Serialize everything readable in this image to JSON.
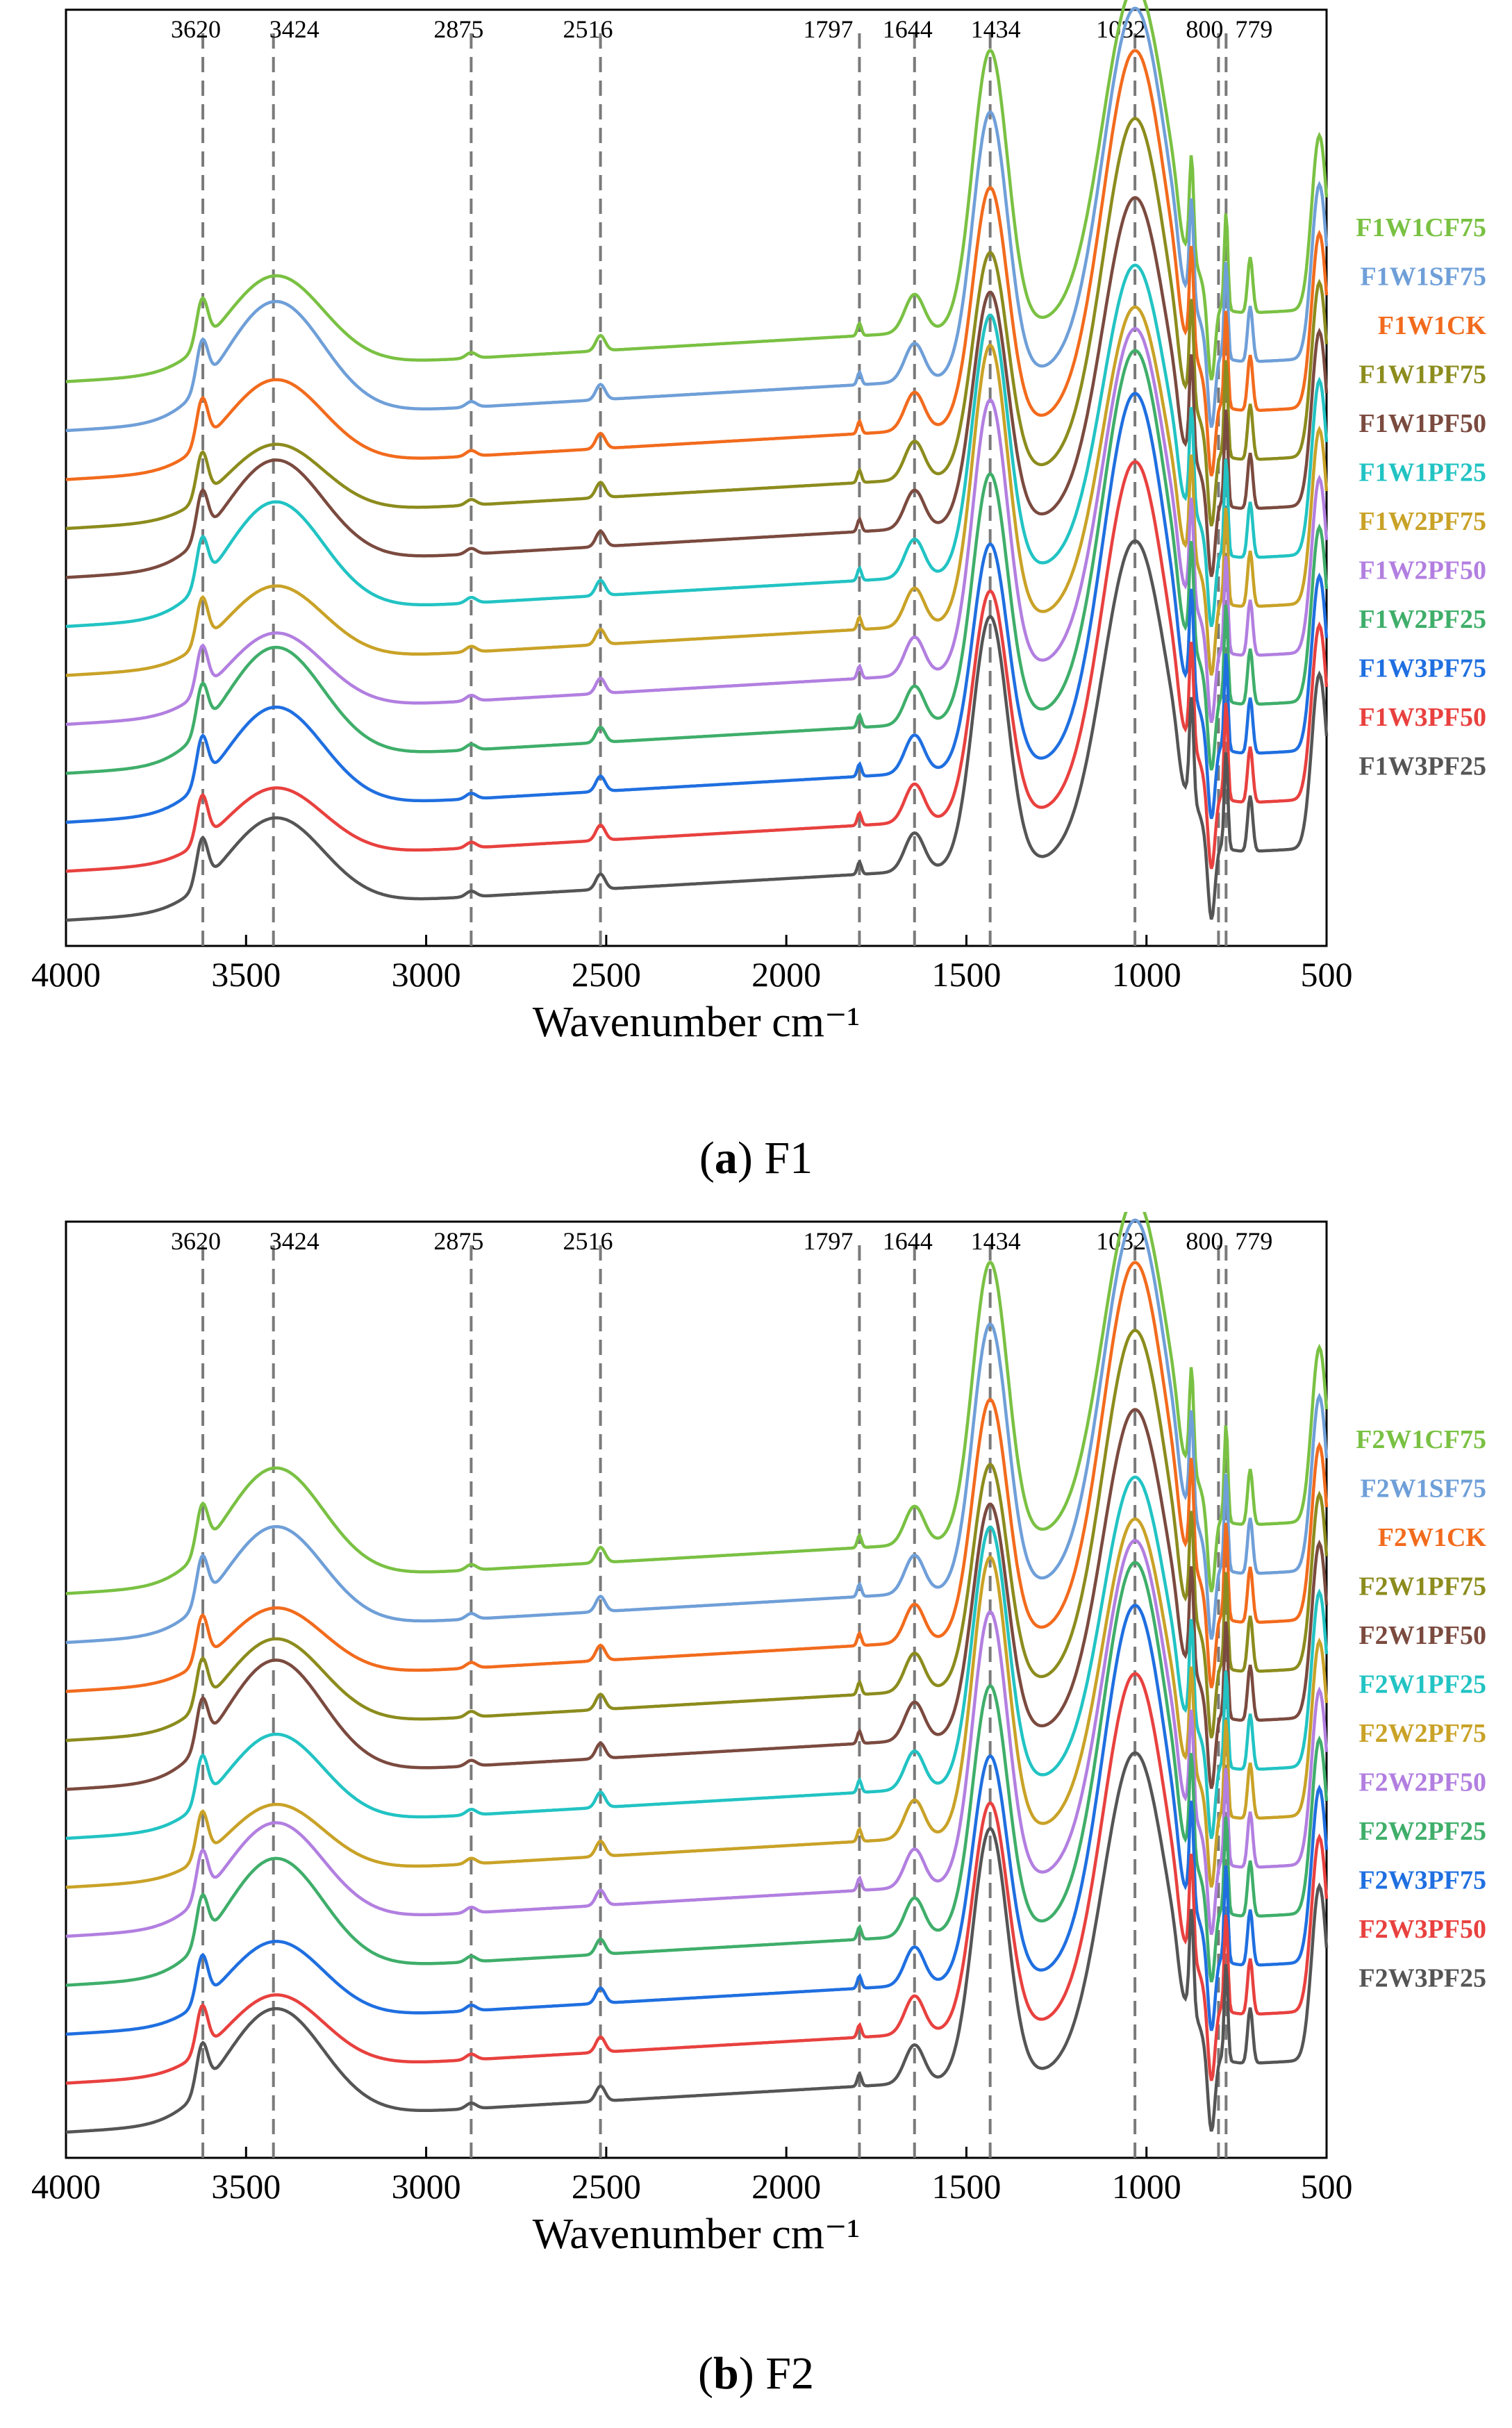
{
  "chart_data": [
    {
      "type": "line",
      "panel": "a",
      "caption_letter": "a",
      "caption_text": "F1",
      "xlabel": "Wavenumber cm⁻¹",
      "ylabel": "",
      "xlim": [
        4000,
        500
      ],
      "x_ticks": [
        "4000",
        "3500",
        "3000",
        "2500",
        "2000",
        "1500",
        "1000",
        "500"
      ],
      "peaks": [
        {
          "wavenumber": 3620,
          "label": "3620"
        },
        {
          "wavenumber": 3424,
          "label": "3424"
        },
        {
          "wavenumber": 2875,
          "label": "2875"
        },
        {
          "wavenumber": 2516,
          "label": "2516"
        },
        {
          "wavenumber": 1797,
          "label": "1797"
        },
        {
          "wavenumber": 1644,
          "label": "1644"
        },
        {
          "wavenumber": 1434,
          "label": "1434"
        },
        {
          "wavenumber": 1032,
          "label": "1032"
        },
        {
          "wavenumber": 800,
          "label": "800"
        },
        {
          "wavenumber": 779,
          "label": "779"
        }
      ],
      "legend_position": "right",
      "series": [
        {
          "name": "F1W1CF75",
          "color": "#7ac143"
        },
        {
          "name": "F1W1SF75",
          "color": "#6f9fd8"
        },
        {
          "name": "F1W1CK",
          "color": "#f26b1d"
        },
        {
          "name": "F1W1PF75",
          "color": "#8c8c1e"
        },
        {
          "name": "F1W1PF50",
          "color": "#7b4a3f"
        },
        {
          "name": "F1W1PF25",
          "color": "#22c3c3"
        },
        {
          "name": "F1W2PF75",
          "color": "#c9a227"
        },
        {
          "name": "F1W2PF50",
          "color": "#b27fe0"
        },
        {
          "name": "F1W2PF25",
          "color": "#3fae6a"
        },
        {
          "name": "F1W3PF75",
          "color": "#1f6fe0"
        },
        {
          "name": "F1W3PF50",
          "color": "#e8413f"
        },
        {
          "name": "F1W3PF25",
          "color": "#555555"
        }
      ]
    },
    {
      "type": "line",
      "panel": "b",
      "caption_letter": "b",
      "caption_text": "F2",
      "xlabel": "Wavenumber cm⁻¹",
      "ylabel": "",
      "xlim": [
        4000,
        500
      ],
      "x_ticks": [
        "4000",
        "3500",
        "3000",
        "2500",
        "2000",
        "1500",
        "1000",
        "500"
      ],
      "peaks": [
        {
          "wavenumber": 3620,
          "label": "3620"
        },
        {
          "wavenumber": 3424,
          "label": "3424"
        },
        {
          "wavenumber": 2875,
          "label": "2875"
        },
        {
          "wavenumber": 2516,
          "label": "2516"
        },
        {
          "wavenumber": 1797,
          "label": "1797"
        },
        {
          "wavenumber": 1644,
          "label": "1644"
        },
        {
          "wavenumber": 1434,
          "label": "1434"
        },
        {
          "wavenumber": 1032,
          "label": "1032"
        },
        {
          "wavenumber": 800,
          "label": "800"
        },
        {
          "wavenumber": 779,
          "label": "779"
        }
      ],
      "legend_position": "right",
      "series": [
        {
          "name": "F2W1CF75",
          "color": "#7ac143"
        },
        {
          "name": "F2W1SF75",
          "color": "#6f9fd8"
        },
        {
          "name": "F2W1CK",
          "color": "#f26b1d"
        },
        {
          "name": "F2W1PF75",
          "color": "#8c8c1e"
        },
        {
          "name": "F2W1PF50",
          "color": "#7b4a3f"
        },
        {
          "name": "F2W1PF25",
          "color": "#22c3c3"
        },
        {
          "name": "F2W2PF75",
          "color": "#c9a227"
        },
        {
          "name": "F2W2PF50",
          "color": "#b27fe0"
        },
        {
          "name": "F2W2PF25",
          "color": "#3fae6a"
        },
        {
          "name": "F2W3PF75",
          "color": "#1f6fe0"
        },
        {
          "name": "F2W3PF50",
          "color": "#e8413f"
        },
        {
          "name": "F2W3PF25",
          "color": "#555555"
        }
      ]
    }
  ]
}
